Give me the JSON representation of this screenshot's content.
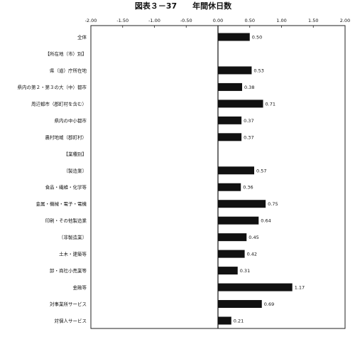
{
  "title": "図表３－37　　年間休日数",
  "chart_data": {
    "type": "bar",
    "orientation": "horizontal",
    "title": "図表３－37　　年間休日数",
    "xlabel": "",
    "ylabel": "",
    "xlim": [
      -2.0,
      2.0
    ],
    "x_ticks": [
      "-2.00",
      "-1.50",
      "-1.00",
      "-0.50",
      "0.00",
      "0.50",
      "1.00",
      "1.50",
      "2.00"
    ],
    "grid": false,
    "legend": "none",
    "categories": [
      "全体",
      "【所在地（市）別】",
      "県（道）庁所在地",
      "県内の第２・第３の大（中）都市",
      "周辺都市（郡町村を含む）",
      "県内の中小都市",
      "農村地域（郡町村）",
      "【業種別】",
      "〔製造業〕",
      "食品・繊維・化学等",
      "金属・機械・電子・電機",
      "印刷・その他製造業",
      "〔非製造業〕",
      "土木・建築等",
      "卸・商社小売業等",
      "金融等",
      "対事業所サービス",
      "対個人サービス"
    ],
    "values": [
      0.5,
      null,
      0.53,
      0.38,
      0.71,
      0.37,
      0.37,
      null,
      0.57,
      0.36,
      0.75,
      0.64,
      0.45,
      0.42,
      0.31,
      1.17,
      0.69,
      0.21
    ],
    "value_labels": [
      "0.50",
      "",
      "0.53",
      "0.38",
      "0.71",
      "0.37",
      "0.37",
      "",
      "0.57",
      "0.36",
      "0.75",
      "0.64",
      "0.45",
      "0.42",
      "0.31",
      "1.17",
      "0.69",
      "0.21"
    ],
    "bar_color": "#111111"
  }
}
